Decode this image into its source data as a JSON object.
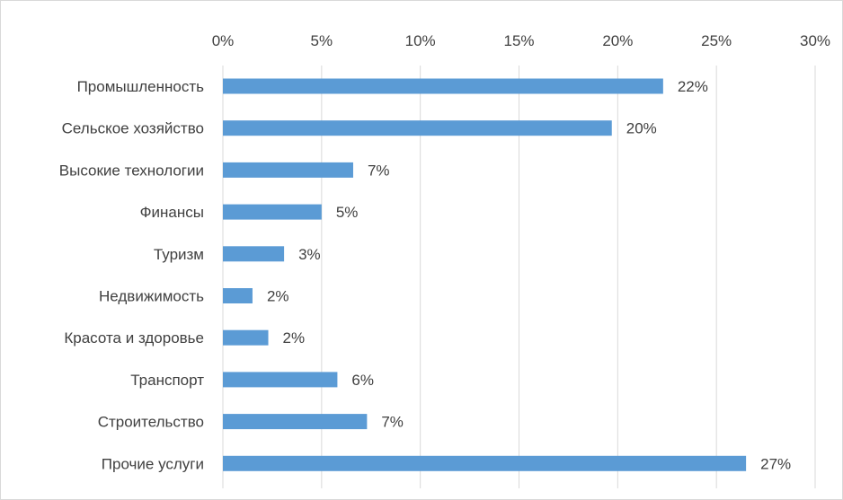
{
  "chart_data": {
    "type": "bar",
    "orientation": "horizontal",
    "categories": [
      "Промышленность",
      "Сельское хозяйство",
      "Высокие технологии",
      "Финансы",
      "Туризм",
      "Недвижимость",
      "Красота и здоровье",
      "Транспорт",
      "Строительство",
      "Прочие услуги"
    ],
    "values": [
      22.3,
      19.7,
      6.6,
      5.0,
      3.1,
      1.5,
      2.3,
      5.8,
      7.3,
      26.5
    ],
    "data_labels": [
      "22%",
      "20%",
      "7%",
      "5%",
      "3%",
      "2%",
      "2%",
      "6%",
      "7%",
      "27%"
    ],
    "x_ticks": [
      "0%",
      "5%",
      "10%",
      "15%",
      "20%",
      "25%",
      "30%"
    ],
    "xlim": [
      0,
      30
    ],
    "x_axis_position": "top",
    "grid": true,
    "legend": "none",
    "bar_color": "#5b9bd5"
  }
}
